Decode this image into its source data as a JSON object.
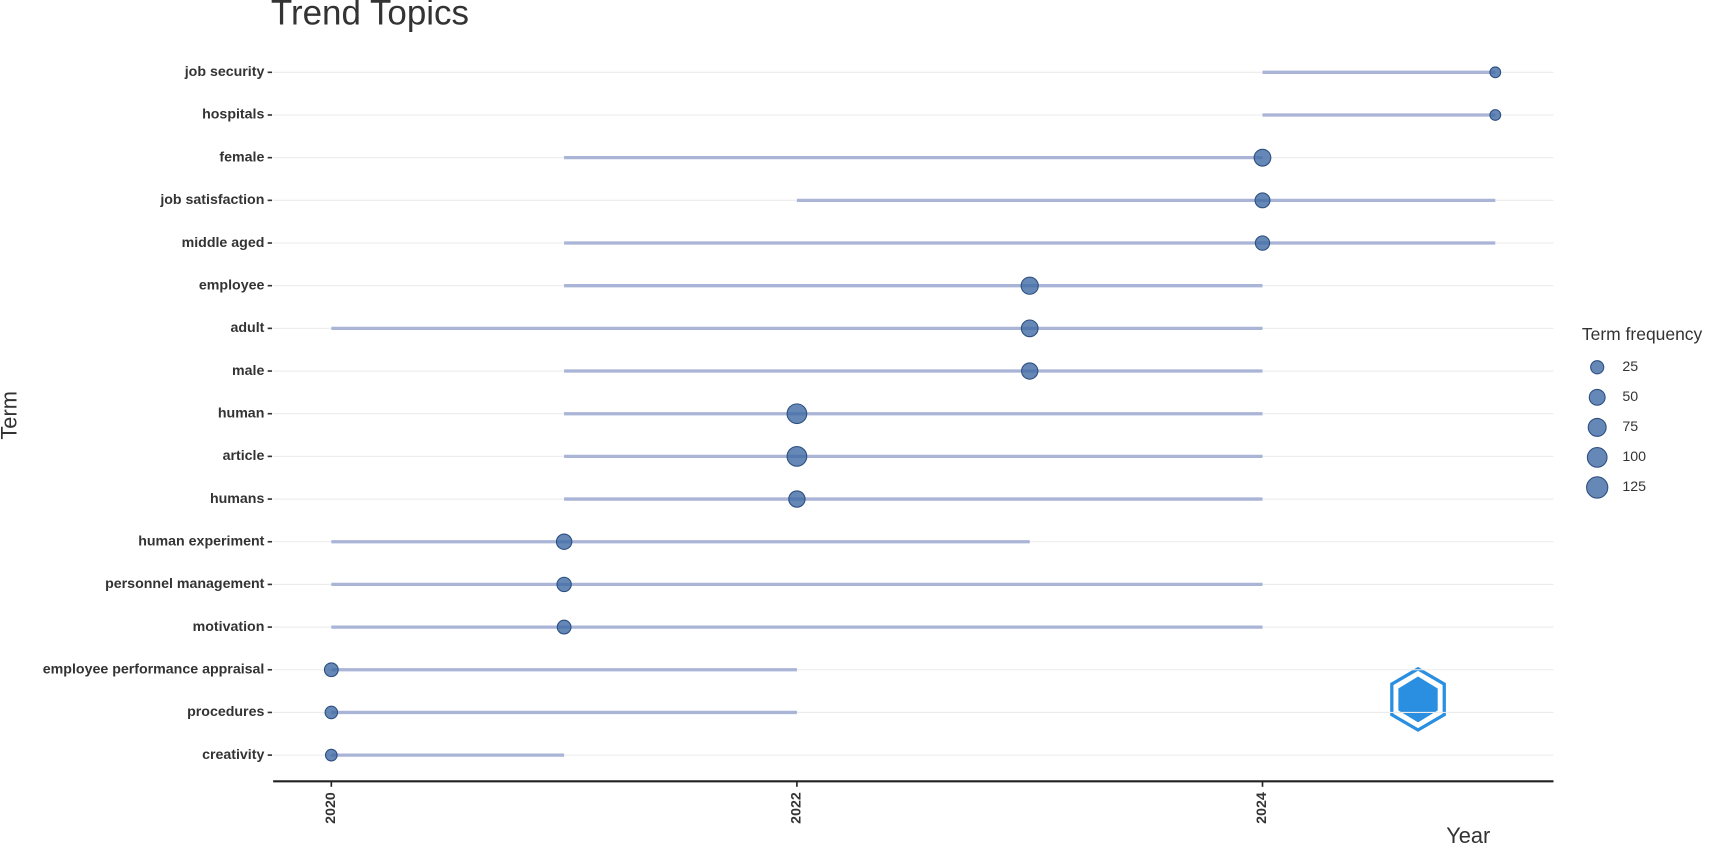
{
  "chart_data": {
    "type": "trend",
    "title": "Trend Topics",
    "x_label": "Year",
    "y_label": "Term",
    "categories": [
      "job security",
      "hospitals",
      "female",
      "job satisfaction",
      "middle aged",
      "employee",
      "adult",
      "male",
      "human",
      "article",
      "humans",
      "human experiment",
      "personnel management",
      "motivation",
      "employee performance appraisal",
      "procedures",
      "creativity"
    ],
    "q1": [
      2024,
      2024,
      2021,
      2022,
      2021,
      2021,
      2020,
      2021,
      2021,
      2021,
      2021,
      2020,
      2020,
      2020,
      2020,
      2020,
      2020
    ],
    "median": [
      2025,
      2025,
      2024,
      2024,
      2024,
      2023,
      2023,
      2023,
      2022,
      2022,
      2022,
      2021,
      2021,
      2021,
      2020,
      2020,
      2020
    ],
    "q3": [
      2025,
      2025,
      2024,
      2025,
      2025,
      2024,
      2024,
      2024,
      2024,
      2024,
      2024,
      2023,
      2024,
      2024,
      2022,
      2022,
      2021
    ],
    "frequency": [
      10,
      10,
      60,
      40,
      35,
      65,
      60,
      55,
      100,
      100,
      55,
      45,
      35,
      30,
      30,
      20,
      15
    ],
    "xlim": [
      2019.75,
      2025.25
    ],
    "xticks": [
      2020,
      2022,
      2024
    ],
    "line_color": "#a9b4d6",
    "point_color": "#3f6aa5",
    "grid": true,
    "size_legend": {
      "title": "Term frequency",
      "values": [
        25,
        50,
        75,
        100,
        125
      ]
    }
  }
}
